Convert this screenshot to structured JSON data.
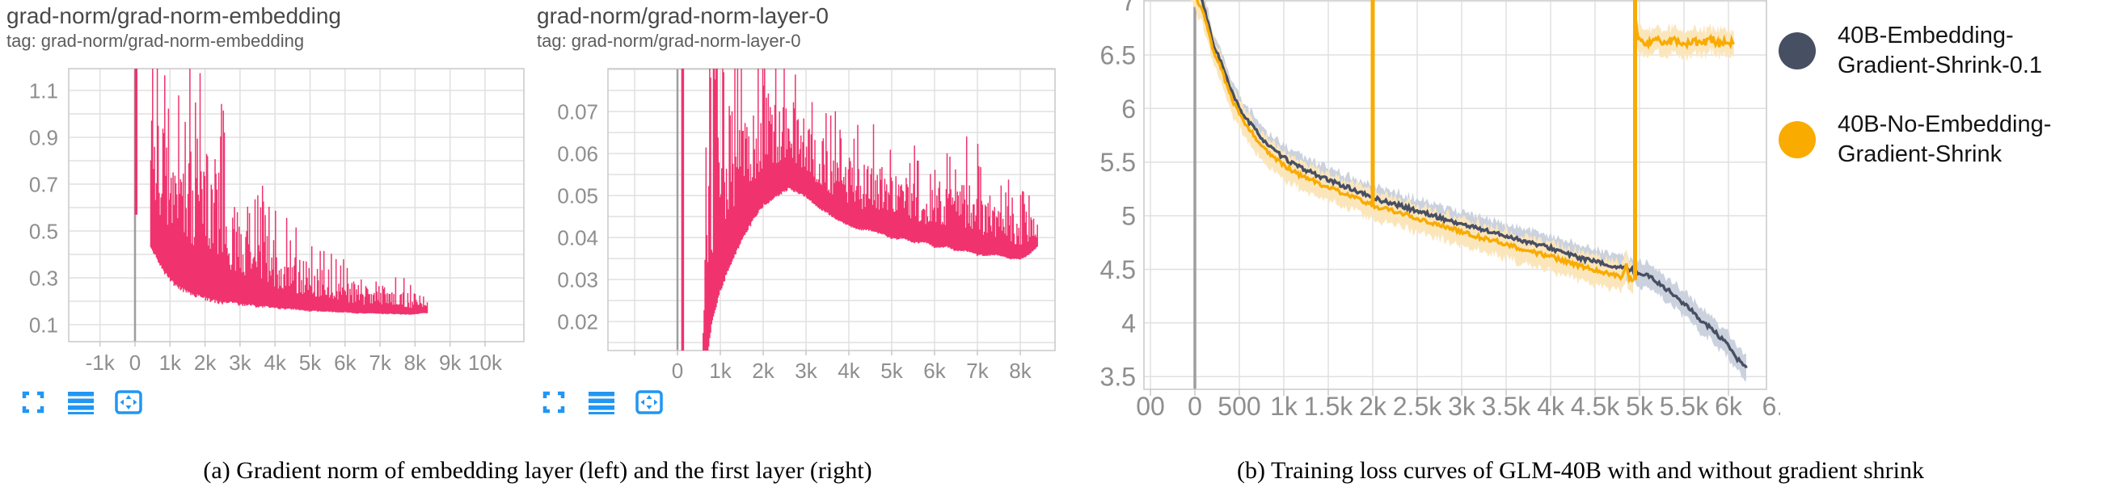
{
  "figure": {
    "captions": {
      "a": "(a) Gradient norm of embedding layer (left) and the first layer (right)",
      "b": "(b) Training loss curves of GLM-40B with and without gradient shrink"
    }
  },
  "colors": {
    "pink": "#F0336E",
    "navy": "#474F63",
    "orange": "#F9AB00",
    "navy_band": "#CBD2DE",
    "orange_band": "#FBE6BC",
    "grid": "#E0E0E0",
    "border": "#C9C9C9",
    "zero_line": "#9E9E9E",
    "tick_text": "#8E8E8E",
    "title_text": "#484848",
    "icon_blue": "#2196F3",
    "caption_text": "#000000"
  },
  "toolbar": {
    "icons": [
      "fullscreen-icon",
      "runs-list-icon",
      "fit-domain-icon"
    ]
  },
  "chart_data": [
    {
      "type": "line",
      "title": "grad-norm/grad-norm-embedding",
      "tag": "tag: grad-norm/grad-norm-embedding",
      "series_name": "grad-norm-embedding",
      "series_color": "#F0336E",
      "x_axis": {
        "ticks_labels": [
          "-1k",
          "0",
          "1k",
          "2k",
          "3k",
          "4k",
          "5k",
          "6k",
          "7k",
          "8k",
          "9k",
          "10k"
        ],
        "ticks_values": [
          -1000,
          0,
          1000,
          2000,
          3000,
          4000,
          5000,
          6000,
          7000,
          8000,
          9000,
          10000
        ],
        "range": [
          -1894,
          11109
        ]
      },
      "y_axis": {
        "ticks_labels": [
          "1.1",
          "0.9",
          "0.7",
          "0.5",
          "0.3",
          "0.1"
        ],
        "ticks_values": [
          1.1,
          0.9,
          0.7,
          0.5,
          0.3,
          0.1
        ],
        "grid_step": 0.1,
        "range": [
          0.0276,
          1.193
        ]
      },
      "initial_spike": {
        "x": 30,
        "lo": 0.57,
        "hi": 1.25
      },
      "envelope": [
        [
          450,
          0.44,
          1.25
        ],
        [
          600,
          0.4,
          1.25
        ],
        [
          800,
          0.34,
          1.25
        ],
        [
          1000,
          0.3,
          1.25
        ],
        [
          1200,
          0.27,
          1.15
        ],
        [
          1500,
          0.25,
          1.22
        ],
        [
          1800,
          0.23,
          1.1
        ],
        [
          2000,
          0.22,
          1.22
        ],
        [
          2200,
          0.21,
          1.05
        ],
        [
          2500,
          0.2,
          0.92
        ],
        [
          2800,
          0.2,
          0.78
        ],
        [
          3000,
          0.19,
          0.72
        ],
        [
          3300,
          0.19,
          0.75
        ],
        [
          3500,
          0.18,
          0.65
        ],
        [
          3800,
          0.18,
          0.6
        ],
        [
          4000,
          0.175,
          0.55
        ],
        [
          4300,
          0.17,
          0.52
        ],
        [
          4500,
          0.17,
          0.48
        ],
        [
          4800,
          0.165,
          0.45
        ],
        [
          5000,
          0.16,
          0.44
        ],
        [
          5300,
          0.16,
          0.42
        ],
        [
          5500,
          0.158,
          0.4
        ],
        [
          5800,
          0.155,
          0.36
        ],
        [
          6000,
          0.155,
          0.35
        ],
        [
          6300,
          0.15,
          0.32
        ],
        [
          6500,
          0.15,
          0.3
        ],
        [
          6800,
          0.15,
          0.3
        ],
        [
          7000,
          0.148,
          0.3
        ],
        [
          7300,
          0.148,
          0.33
        ],
        [
          7500,
          0.146,
          0.3
        ],
        [
          7800,
          0.145,
          0.27
        ],
        [
          8000,
          0.145,
          0.26
        ],
        [
          8200,
          0.15,
          0.22
        ],
        [
          8350,
          0.15,
          0.19
        ]
      ]
    },
    {
      "type": "line",
      "title": "grad-norm/grad-norm-layer-0",
      "tag": "tag: grad-norm/grad-norm-layer-0",
      "series_name": "grad-norm-layer-0",
      "series_color": "#F0336E",
      "x_axis": {
        "ticks_labels": [
          "0",
          "1k",
          "2k",
          "3k",
          "4k",
          "5k",
          "6k",
          "7k",
          "8k"
        ],
        "ticks_values": [
          0,
          1000,
          2000,
          3000,
          4000,
          5000,
          6000,
          7000,
          8000
        ],
        "grid_values": [
          -1000,
          0,
          1000,
          2000,
          3000,
          4000,
          5000,
          6000,
          7000,
          8000
        ],
        "range": [
          -1623,
          8811
        ]
      },
      "y_axis": {
        "ticks_labels": [
          "0.07",
          "0.06",
          "0.05",
          "0.04",
          "0.03",
          "0.02"
        ],
        "ticks_values": [
          0.07,
          0.06,
          0.05,
          0.04,
          0.03,
          0.02
        ],
        "grid_step": 0.005,
        "range": [
          0.0131,
          0.0802
        ]
      },
      "initial_spike": {
        "x": 120,
        "lo": 0.01,
        "hi": 0.085
      },
      "envelope": [
        [
          600,
          0.012,
          0.03
        ],
        [
          700,
          0.013,
          0.085
        ],
        [
          800,
          0.02,
          0.085
        ],
        [
          1000,
          0.028,
          0.085
        ],
        [
          1200,
          0.033,
          0.085
        ],
        [
          1500,
          0.04,
          0.085
        ],
        [
          1800,
          0.045,
          0.085
        ],
        [
          2000,
          0.048,
          0.085
        ],
        [
          2300,
          0.05,
          0.085
        ],
        [
          2600,
          0.052,
          0.083
        ],
        [
          2800,
          0.051,
          0.078
        ],
        [
          3000,
          0.05,
          0.075
        ],
        [
          3200,
          0.048,
          0.071
        ],
        [
          3500,
          0.046,
          0.068
        ],
        [
          3800,
          0.044,
          0.066
        ],
        [
          4000,
          0.043,
          0.065
        ],
        [
          4300,
          0.042,
          0.063
        ],
        [
          4500,
          0.042,
          0.068
        ],
        [
          4800,
          0.041,
          0.064
        ],
        [
          5000,
          0.04,
          0.068
        ],
        [
          5300,
          0.04,
          0.061
        ],
        [
          5500,
          0.039,
          0.059
        ],
        [
          5800,
          0.039,
          0.058
        ],
        [
          6000,
          0.038,
          0.064
        ],
        [
          6300,
          0.038,
          0.057
        ],
        [
          6500,
          0.037,
          0.056
        ],
        [
          6800,
          0.037,
          0.062
        ],
        [
          7000,
          0.036,
          0.059
        ],
        [
          7300,
          0.036,
          0.055
        ],
        [
          7500,
          0.036,
          0.053
        ],
        [
          7800,
          0.035,
          0.051
        ],
        [
          8000,
          0.035,
          0.05
        ],
        [
          8200,
          0.036,
          0.049
        ],
        [
          8400,
          0.038,
          0.048
        ]
      ]
    },
    {
      "type": "line",
      "title": "",
      "x_axis": {
        "ticks_labels": [
          "00",
          "0",
          "500",
          "1k",
          "1.5k",
          "2k",
          "2.5k",
          "3k",
          "3.5k",
          "4k",
          "4.5k",
          "5k",
          "5.5k",
          "6k",
          "6."
        ],
        "ticks_values": [
          -500,
          0,
          500,
          1000,
          1500,
          2000,
          2500,
          3000,
          3500,
          4000,
          4500,
          5000,
          5500,
          6000,
          6500
        ],
        "range": [
          -573,
          6427
        ]
      },
      "y_axis": {
        "ticks_labels": [
          "7",
          "6.5",
          "6",
          "5.5",
          "5",
          "4.5",
          "4",
          "3.5"
        ],
        "ticks_values": [
          7,
          6.5,
          6,
          5.5,
          5,
          4.5,
          4,
          3.5
        ],
        "grid_step": 0.5,
        "range": [
          3.381,
          7.012
        ]
      },
      "series": [
        {
          "name": "40B-Embedding-Gradient-Shrink-0.1",
          "color": "#474F63",
          "band_color": "#CBD2DE",
          "points": [
            [
              -60,
              7.25
            ],
            [
              30,
              7.1
            ],
            [
              100,
              6.95
            ],
            [
              200,
              6.62
            ],
            [
              300,
              6.42
            ],
            [
              400,
              6.18
            ],
            [
              500,
              6.0
            ],
            [
              600,
              5.88
            ],
            [
              700,
              5.78
            ],
            [
              800,
              5.68
            ],
            [
              900,
              5.6
            ],
            [
              1000,
              5.54
            ],
            [
              1100,
              5.49
            ],
            [
              1200,
              5.44
            ],
            [
              1300,
              5.41
            ],
            [
              1400,
              5.37
            ],
            [
              1500,
              5.33
            ],
            [
              1700,
              5.27
            ],
            [
              1900,
              5.2
            ],
            [
              2000,
              5.17
            ],
            [
              2100,
              5.14
            ],
            [
              2200,
              5.12
            ],
            [
              2400,
              5.07
            ],
            [
              2600,
              5.02
            ],
            [
              2800,
              4.97
            ],
            [
              3000,
              4.92
            ],
            [
              3200,
              4.88
            ],
            [
              3400,
              4.83
            ],
            [
              3600,
              4.79
            ],
            [
              3800,
              4.74
            ],
            [
              4000,
              4.7
            ],
            [
              4200,
              4.64
            ],
            [
              4400,
              4.59
            ],
            [
              4600,
              4.55
            ],
            [
              4800,
              4.51
            ],
            [
              4900,
              4.5
            ],
            [
              5000,
              4.47
            ],
            [
              5100,
              4.44
            ],
            [
              5200,
              4.38
            ],
            [
              5300,
              4.32
            ],
            [
              5400,
              4.25
            ],
            [
              5500,
              4.18
            ],
            [
              5600,
              4.1
            ],
            [
              5700,
              4.02
            ],
            [
              5800,
              3.95
            ],
            [
              5900,
              3.87
            ],
            [
              6000,
              3.78
            ],
            [
              6050,
              3.72
            ],
            [
              6100,
              3.66
            ],
            [
              6150,
              3.62
            ],
            [
              6200,
              3.58
            ]
          ]
        },
        {
          "name": "40B-No-Embedding-Gradient-Shrink",
          "color": "#F9AB00",
          "band_color": "#FBE6BC",
          "points": [
            [
              -60,
              7.2
            ],
            [
              30,
              7.0
            ],
            [
              100,
              6.88
            ],
            [
              200,
              6.55
            ],
            [
              300,
              6.36
            ],
            [
              400,
              6.12
            ],
            [
              500,
              5.94
            ],
            [
              600,
              5.82
            ],
            [
              700,
              5.71
            ],
            [
              800,
              5.61
            ],
            [
              900,
              5.53
            ],
            [
              1000,
              5.47
            ],
            [
              1100,
              5.42
            ],
            [
              1200,
              5.37
            ],
            [
              1300,
              5.34
            ],
            [
              1400,
              5.3
            ],
            [
              1500,
              5.26
            ],
            [
              1700,
              5.2
            ],
            [
              1900,
              5.13
            ],
            [
              2000,
              5.1
            ],
            [
              2100,
              5.07
            ],
            [
              2200,
              5.05
            ],
            [
              2400,
              5.0
            ],
            [
              2600,
              4.95
            ],
            [
              2800,
              4.9
            ],
            [
              3000,
              4.85
            ],
            [
              3200,
              4.8
            ],
            [
              3400,
              4.76
            ],
            [
              3600,
              4.71
            ],
            [
              3800,
              4.66
            ],
            [
              4000,
              4.62
            ],
            [
              4200,
              4.56
            ],
            [
              4400,
              4.52
            ],
            [
              4600,
              4.47
            ],
            [
              4700,
              4.45
            ],
            [
              4800,
              4.43
            ],
            [
              4850,
              4.55
            ],
            [
              4880,
              4.42
            ],
            [
              4930,
              4.4
            ]
          ],
          "spikes": [
            {
              "x": 2000,
              "from": 5.1,
              "to": 7.3
            },
            {
              "x": 4950,
              "from": 4.4,
              "to": 7.3
            }
          ],
          "flat_points": [
            [
              4958,
              6.78
            ],
            [
              5000,
              6.63
            ],
            [
              5100,
              6.6
            ],
            [
              5200,
              6.66
            ],
            [
              5300,
              6.6
            ],
            [
              5400,
              6.64
            ],
            [
              5500,
              6.58
            ],
            [
              5600,
              6.63
            ],
            [
              5700,
              6.6
            ],
            [
              5800,
              6.65
            ],
            [
              5900,
              6.6
            ],
            [
              6000,
              6.63
            ],
            [
              6060,
              6.6
            ]
          ]
        }
      ],
      "legend": [
        {
          "line1": "40B-Embedding-",
          "line2": "Gradient-Shrink-0.1",
          "color": "#474F63"
        },
        {
          "line1": "40B-No-Embedding-",
          "line2": "Gradient-Shrink",
          "color": "#F9AB00"
        }
      ]
    }
  ]
}
